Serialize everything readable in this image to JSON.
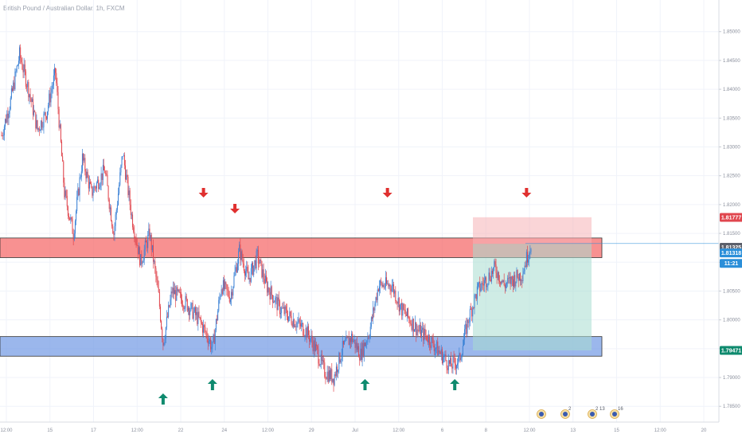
{
  "chart_data": {
    "type": "candlestick",
    "title": "British Pound / Australian Dollar, 1h, FXCM",
    "ylim": [
      1.786,
      1.853
    ],
    "y_ticks": [
      "1.85000",
      "1.84500",
      "1.84000",
      "1.83500",
      "1.83000",
      "1.82500",
      "1.82000",
      "1.81500",
      "1.81000",
      "1.80500",
      "1.80000",
      "1.79500",
      "1.79000",
      "1.78500"
    ],
    "x_ticks": [
      "12:00",
      "15",
      "17",
      "12:00",
      "22",
      "24",
      "12:00",
      "29",
      "Jul",
      "12:00",
      "6",
      "8",
      "12:00",
      "13",
      "15",
      "12:00",
      "20"
    ],
    "grid": true,
    "colors": {
      "up": "#3b82d6",
      "down": "#e0464e",
      "resistance_zone": "#f56c6c",
      "support_zone": "#7a9fe6",
      "arrow_down": "#e0302f",
      "arrow_up": "#0e8a6e"
    },
    "zones": [
      {
        "name": "resistance",
        "from": 1.8108,
        "to": 1.8142
      },
      {
        "name": "support",
        "from": 1.7937,
        "to": 1.7971
      }
    ],
    "position": {
      "entry": 1.8132,
      "target": 1.7947,
      "stop": 1.8178
    },
    "current_price_line": 1.81325,
    "price_tags": [
      {
        "label": "1.81777",
        "value": 1.81777,
        "color": "#e0464e"
      },
      {
        "label": "1.81325",
        "value": 1.8126,
        "color": "#5c606b"
      },
      {
        "label": "1.81318",
        "value": 1.8116,
        "color": "#2b8fd9"
      },
      {
        "label": "11:21",
        "value": 1.8098,
        "color": "#2b8fd9"
      },
      {
        "label": "1.79471",
        "value": 1.79471,
        "color": "#0e8a6e"
      }
    ],
    "markers": [
      {
        "type": "down",
        "x_index": 45
      },
      {
        "type": "down",
        "x_index": 52
      },
      {
        "type": "down",
        "x_index": 86
      },
      {
        "type": "down",
        "x_index": 117
      },
      {
        "type": "up",
        "x_index": 36
      },
      {
        "type": "up",
        "x_index": 47
      },
      {
        "type": "up",
        "x_index": 81
      },
      {
        "type": "up",
        "x_index": 101
      }
    ],
    "path": [
      {
        "i": 0,
        "v": 1.832
      },
      {
        "i": 2,
        "v": 1.838
      },
      {
        "i": 4,
        "v": 1.846
      },
      {
        "i": 6,
        "v": 1.84
      },
      {
        "i": 8,
        "v": 1.833
      },
      {
        "i": 10,
        "v": 1.836
      },
      {
        "i": 12,
        "v": 1.843
      },
      {
        "i": 14,
        "v": 1.822
      },
      {
        "i": 16,
        "v": 1.815
      },
      {
        "i": 18,
        "v": 1.828
      },
      {
        "i": 20,
        "v": 1.822
      },
      {
        "i": 23,
        "v": 1.826
      },
      {
        "i": 25,
        "v": 1.815
      },
      {
        "i": 27,
        "v": 1.829
      },
      {
        "i": 29,
        "v": 1.818
      },
      {
        "i": 31,
        "v": 1.81
      },
      {
        "i": 33,
        "v": 1.815
      },
      {
        "i": 35,
        "v": 1.804
      },
      {
        "i": 36,
        "v": 1.796
      },
      {
        "i": 38,
        "v": 1.805
      },
      {
        "i": 41,
        "v": 1.803
      },
      {
        "i": 44,
        "v": 1.8
      },
      {
        "i": 46,
        "v": 1.797
      },
      {
        "i": 47,
        "v": 1.795
      },
      {
        "i": 49,
        "v": 1.806
      },
      {
        "i": 51,
        "v": 1.804
      },
      {
        "i": 53,
        "v": 1.812
      },
      {
        "i": 55,
        "v": 1.807
      },
      {
        "i": 57,
        "v": 1.811
      },
      {
        "i": 59,
        "v": 1.806
      },
      {
        "i": 62,
        "v": 1.802
      },
      {
        "i": 65,
        "v": 1.8
      },
      {
        "i": 68,
        "v": 1.798
      },
      {
        "i": 70,
        "v": 1.795
      },
      {
        "i": 72,
        "v": 1.791
      },
      {
        "i": 74,
        "v": 1.79
      },
      {
        "i": 76,
        "v": 1.795
      },
      {
        "i": 78,
        "v": 1.797
      },
      {
        "i": 80,
        "v": 1.794
      },
      {
        "i": 82,
        "v": 1.798
      },
      {
        "i": 84,
        "v": 1.806
      },
      {
        "i": 87,
        "v": 1.806
      },
      {
        "i": 89,
        "v": 1.802
      },
      {
        "i": 91,
        "v": 1.8
      },
      {
        "i": 93,
        "v": 1.798
      },
      {
        "i": 95,
        "v": 1.797
      },
      {
        "i": 97,
        "v": 1.795
      },
      {
        "i": 100,
        "v": 1.792
      },
      {
        "i": 102,
        "v": 1.793
      },
      {
        "i": 104,
        "v": 1.8
      },
      {
        "i": 106,
        "v": 1.805
      },
      {
        "i": 108,
        "v": 1.807
      },
      {
        "i": 110,
        "v": 1.809
      },
      {
        "i": 112,
        "v": 1.806
      },
      {
        "i": 114,
        "v": 1.807
      },
      {
        "i": 116,
        "v": 1.808
      },
      {
        "i": 118,
        "v": 1.8133
      }
    ],
    "bar_count": 119,
    "event_badges": [
      {
        "count": ""
      },
      {
        "count": "2"
      },
      {
        "count": "2 13"
      },
      {
        "count": "16"
      }
    ]
  }
}
